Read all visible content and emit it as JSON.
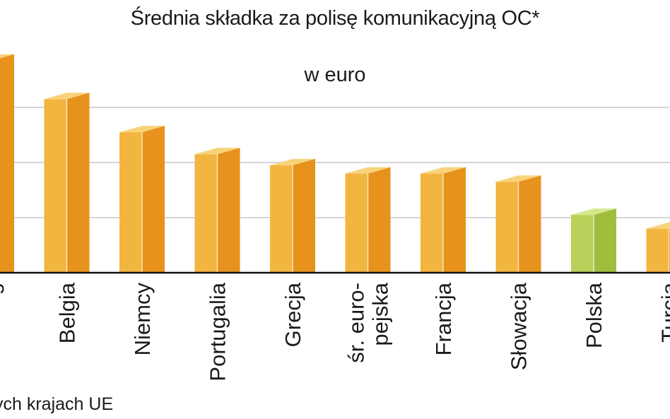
{
  "chart_data": {
    "type": "bar",
    "title": "Średnia składka za polisę komunikacyjną OC*",
    "subtitle": "w euro",
    "footnote": "ych krajach UE",
    "categories": [
      "burg",
      "Belgia",
      "Niemcy",
      "Portugalia",
      "Grecja",
      [
        "śr. euro-",
        "pejska"
      ],
      "Francja",
      "Słowacja",
      "Polska",
      "Turcja"
    ],
    "values": [
      385,
      315,
      255,
      215,
      195,
      180,
      180,
      165,
      105,
      80
    ],
    "highlight_index": 8,
    "ylim": [
      0,
      400
    ],
    "gridlines": [
      100,
      200,
      300
    ],
    "colors": {
      "bar_front": "#f2b540",
      "bar_side": "#e6921c",
      "bar_top": "#f8d37a",
      "highlight_front": "#b7d15a",
      "highlight_side": "#a0bd3e",
      "highlight_top": "#d6e88f",
      "grid": "#c8c8c8",
      "baseline": "#111111"
    }
  }
}
